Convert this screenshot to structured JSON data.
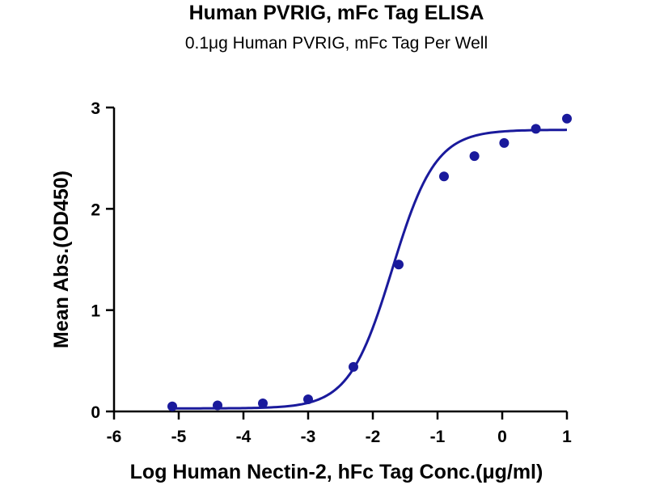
{
  "chart_data": {
    "type": "scatter",
    "title": "Human PVRIG, mFc Tag ELISA",
    "subtitle": "0.1μg Human PVRIG, mFc Tag Per Well",
    "xlabel": "Log Human Nectin-2, hFc Tag Conc.(μg/ml)",
    "ylabel": "Mean Abs.(OD450)",
    "xlim": [
      -6,
      1
    ],
    "ylim": [
      0,
      3
    ],
    "x_ticks": [
      -6,
      -5,
      -4,
      -3,
      -2,
      -1,
      0,
      1
    ],
    "y_ticks": [
      0,
      1,
      2,
      3
    ],
    "x_tick_labels": [
      "-6",
      "-5",
      "-4",
      "-3",
      "-2",
      "-1",
      "0",
      "1"
    ],
    "y_tick_labels": [
      "0",
      "1",
      "2",
      "3"
    ],
    "grid": false,
    "series": [
      {
        "points": [
          {
            "x": -5.1,
            "y": 0.05
          },
          {
            "x": -4.4,
            "y": 0.06
          },
          {
            "x": -3.7,
            "y": 0.08
          },
          {
            "x": -3.0,
            "y": 0.12
          },
          {
            "x": -2.3,
            "y": 0.44
          },
          {
            "x": -1.6,
            "y": 1.45
          },
          {
            "x": -0.9,
            "y": 2.32
          },
          {
            "x": -0.43,
            "y": 2.52
          },
          {
            "x": 0.03,
            "y": 2.65
          },
          {
            "x": 0.52,
            "y": 2.79
          },
          {
            "x": 1.0,
            "y": 2.89
          }
        ],
        "fit_curve": {
          "model": "4PL",
          "bottom": 0.03,
          "top": 2.78,
          "logEC50": -1.7,
          "hill_slope": 1.3,
          "x_range": [
            -5.1,
            1.0
          ]
        },
        "color": "#1a1a9c"
      }
    ]
  }
}
